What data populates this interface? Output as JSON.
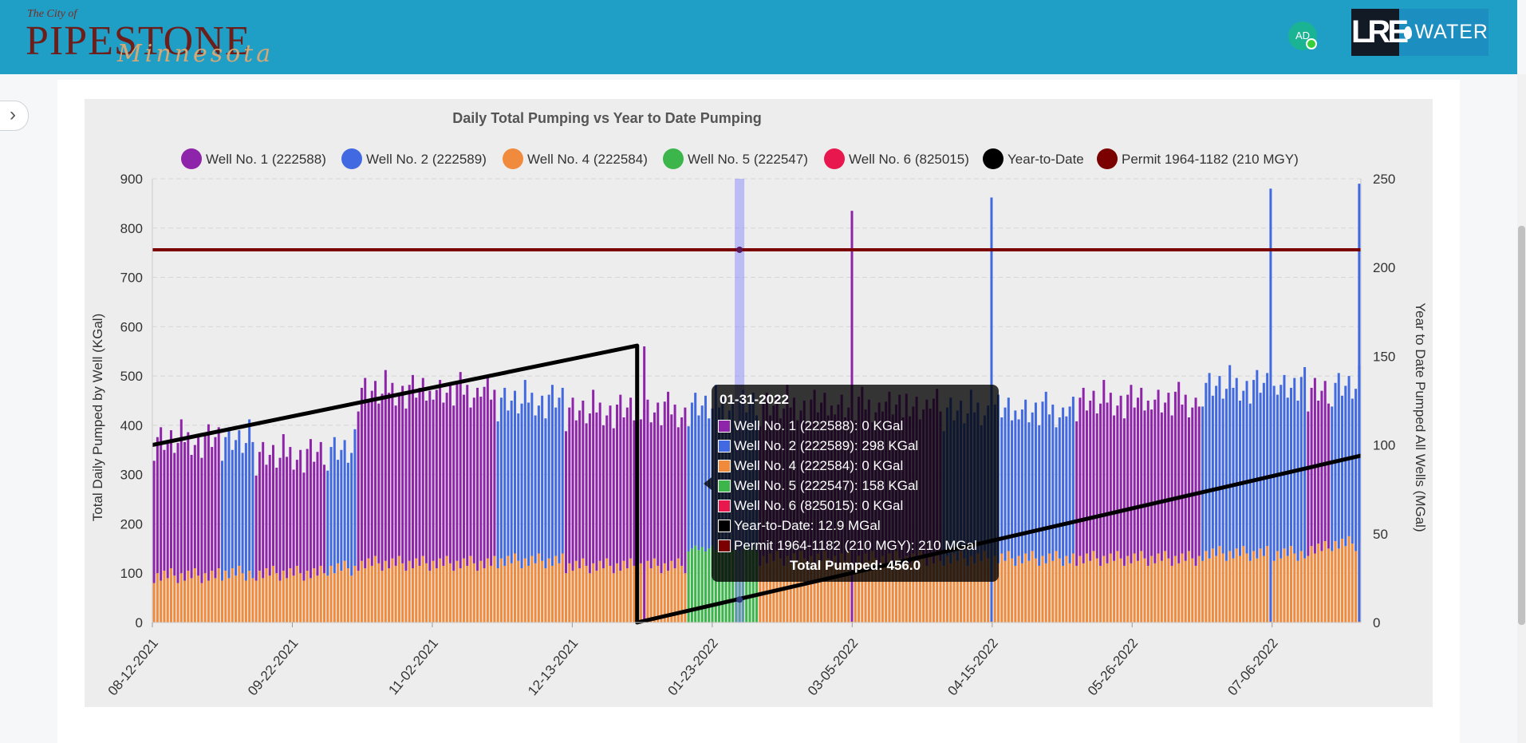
{
  "header": {
    "brand_pre": "The City of",
    "brand_main": "PIPESTONE",
    "brand_script": "Minnesota",
    "avatar_initials": "AD",
    "logo_left": "LRE",
    "logo_right": "WATER",
    "bg_color": "#209fc6"
  },
  "sidebar": {
    "toggle_icon": "chevron-right-icon"
  },
  "chart_data": {
    "type": "bar",
    "title": "Daily Total Pumping vs Year to Date Pumping",
    "ylabel": "Total Daily Pumped by Well (KGal)",
    "y2label": "Year to Date Pumped All Wells (MGal)",
    "ylim": [
      0,
      900
    ],
    "y2lim": [
      0,
      250
    ],
    "yticks": [
      "0",
      "100",
      "200",
      "300",
      "400",
      "500",
      "600",
      "700",
      "800",
      "900"
    ],
    "y2ticks": [
      "0",
      "50",
      "100",
      "150",
      "200",
      "250"
    ],
    "xticks": [
      "08-12-2021",
      "09-22-2021",
      "11-02-2021",
      "12-13-2021",
      "01-23-2022",
      "03-05-2022",
      "04-15-2022",
      "05-26-2022",
      "07-06-2022"
    ],
    "date_range": [
      "08-12-2021",
      "08-01-2022"
    ],
    "grid": true,
    "stacked": true,
    "legend_position": "top",
    "legend": [
      {
        "name": "Well No. 1 (222588)",
        "color": "#8e24aa"
      },
      {
        "name": "Well No. 2 (222589)",
        "color": "#4169e1"
      },
      {
        "name": "Well No. 4 (222584)",
        "color": "#f08a3c"
      },
      {
        "name": "Well No. 5 (222547)",
        "color": "#3cb54a"
      },
      {
        "name": "Well No. 6 (825015)",
        "color": "#e8174d"
      },
      {
        "name": "Year-to-Date",
        "color": "#000000"
      },
      {
        "name": "Permit 1964-1182 (210 MGY)",
        "color": "#7b0000"
      }
    ],
    "segments": [
      {
        "start": "08-12-2021",
        "end": "08-31-2021",
        "top": "Well No. 1 (222588)",
        "total": 370,
        "well4": 95
      },
      {
        "start": "09-01-2021",
        "end": "09-10-2021",
        "top": "Well No. 2 (222589)",
        "total": 370,
        "well4": 100
      },
      {
        "start": "09-11-2021",
        "end": "10-01-2021",
        "top": "Well No. 1 (222588)",
        "total": 340,
        "well4": 100
      },
      {
        "start": "10-02-2021",
        "end": "10-10-2021",
        "top": "Well No. 2 (222589)",
        "total": 350,
        "well4": 110
      },
      {
        "start": "10-11-2021",
        "end": "11-20-2021",
        "top": "Well No. 1 (222588)",
        "total": 470,
        "well4": 120
      },
      {
        "start": "11-21-2021",
        "end": "12-10-2021",
        "top": "Well No. 2 (222589)",
        "total": 450,
        "well4": 125
      },
      {
        "start": "12-11-2021",
        "end": "01-15-2022",
        "top": "Well No. 1 (222588)",
        "total": 430,
        "well4": 115
      },
      {
        "start": "01-16-2022",
        "end": "02-05-2022",
        "top": "Well No. 2 (222589)",
        "total": 440,
        "well5": 150
      },
      {
        "start": "02-06-2022",
        "end": "03-31-2022",
        "top": "Well No. 1 (222588)",
        "total": 440,
        "well4": 130
      },
      {
        "start": "04-01-2022",
        "end": "05-09-2022",
        "top": "Well No. 2 (222589)",
        "total": 430,
        "well4": 130
      },
      {
        "start": "05-10-2022",
        "end": "06-15-2022",
        "top": "Well No. 1 (222588)",
        "total": 450,
        "well4": 130
      },
      {
        "start": "06-16-2022",
        "end": "07-16-2022",
        "top": "Well No. 2 (222589)",
        "total": 480,
        "well4": 140
      },
      {
        "start": "07-17-2022",
        "end": "07-23-2022",
        "top": "Well No. 1 (222588)",
        "total": 470,
        "well4": 150
      },
      {
        "start": "07-24-2022",
        "end": "08-01-2022",
        "top": "Well No. 2 (222589)",
        "total": 480,
        "well4": 160
      }
    ],
    "spikes": [
      {
        "date": "01-03-2022",
        "value": 560,
        "series": "Well No. 1 (222588)"
      },
      {
        "date": "03-05-2022",
        "value": 835,
        "series": "Well No. 1 (222588)"
      },
      {
        "date": "04-15-2022",
        "value": 862,
        "series": "Well No. 2 (222589)"
      },
      {
        "date": "07-06-2022",
        "value": 880,
        "series": "Well No. 2 (222589)"
      },
      {
        "date": "08-01-2022",
        "value": 890,
        "series": "Well No. 2 (222589)"
      }
    ],
    "year_to_date": {
      "name": "Year-to-Date",
      "points": [
        {
          "date": "08-12-2021",
          "value": 100
        },
        {
          "date": "01-01-2022",
          "value": 156
        },
        {
          "date": "01-01-2022",
          "value": 0
        },
        {
          "date": "08-01-2022",
          "value": 94
        }
      ]
    },
    "permit": {
      "name": "Permit 1964-1182 (210 MGY)",
      "value": 210
    },
    "tooltip": {
      "date": "01-31-2022",
      "rows": [
        {
          "label": "Well No. 1 (222588): 0 KGal",
          "color": "#8e24aa"
        },
        {
          "label": "Well No. 2 (222589): 298 KGal",
          "color": "#4169e1"
        },
        {
          "label": "Well No. 4 (222584): 0 KGal",
          "color": "#f08a3c"
        },
        {
          "label": "Well No. 5 (222547): 158 KGal",
          "color": "#3cb54a"
        },
        {
          "label": "Well No. 6 (825015): 0 KGal",
          "color": "#e8174d"
        },
        {
          "label": "Year-to-Date: 12.9 MGal",
          "color": "#000000"
        },
        {
          "label": "Permit 1964-1182 (210 MGY): 210 MGal",
          "color": "#7b0000"
        }
      ],
      "total": "Total Pumped: 456.0"
    }
  }
}
